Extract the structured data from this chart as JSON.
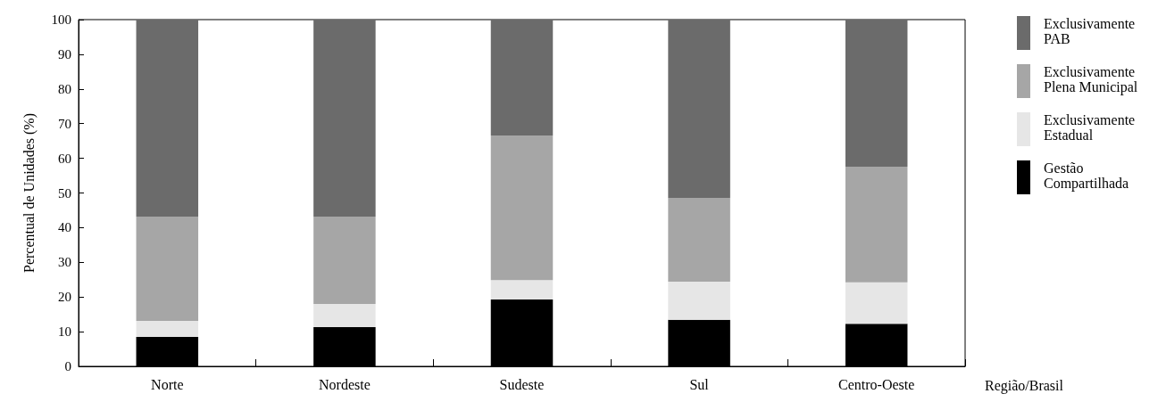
{
  "chart_data": {
    "type": "bar",
    "stacked": true,
    "categories": [
      "Norte",
      "Nordeste",
      "Sudeste",
      "Sul",
      "Centro-Oeste"
    ],
    "xlabel": "Região/Brasil",
    "ylabel": "Percentual de Unidades (%)",
    "ylim": [
      0,
      100
    ],
    "yticks": [
      0,
      10,
      20,
      30,
      40,
      50,
      60,
      70,
      80,
      90,
      100
    ],
    "grid": false,
    "legend": "top right",
    "series": [
      {
        "name": "Gestão Compartilhada",
        "color": "#000000",
        "values": [
          8.5,
          11.3,
          19.3,
          13.4,
          12.3
        ]
      },
      {
        "name": "Exclusivamente Estadual",
        "color": "#e6e6e6",
        "values": [
          4.6,
          6.7,
          5.6,
          11.0,
          11.9
        ]
      },
      {
        "name": "Exclusivamente Plena Municipal",
        "color": "#a6a6a6",
        "values": [
          30.1,
          25.2,
          41.7,
          24.2,
          33.4
        ]
      },
      {
        "name": "Exclusivamente PAB",
        "color": "#6b6b6b",
        "values": [
          56.8,
          56.8,
          33.4,
          51.4,
          42.4
        ]
      }
    ]
  }
}
